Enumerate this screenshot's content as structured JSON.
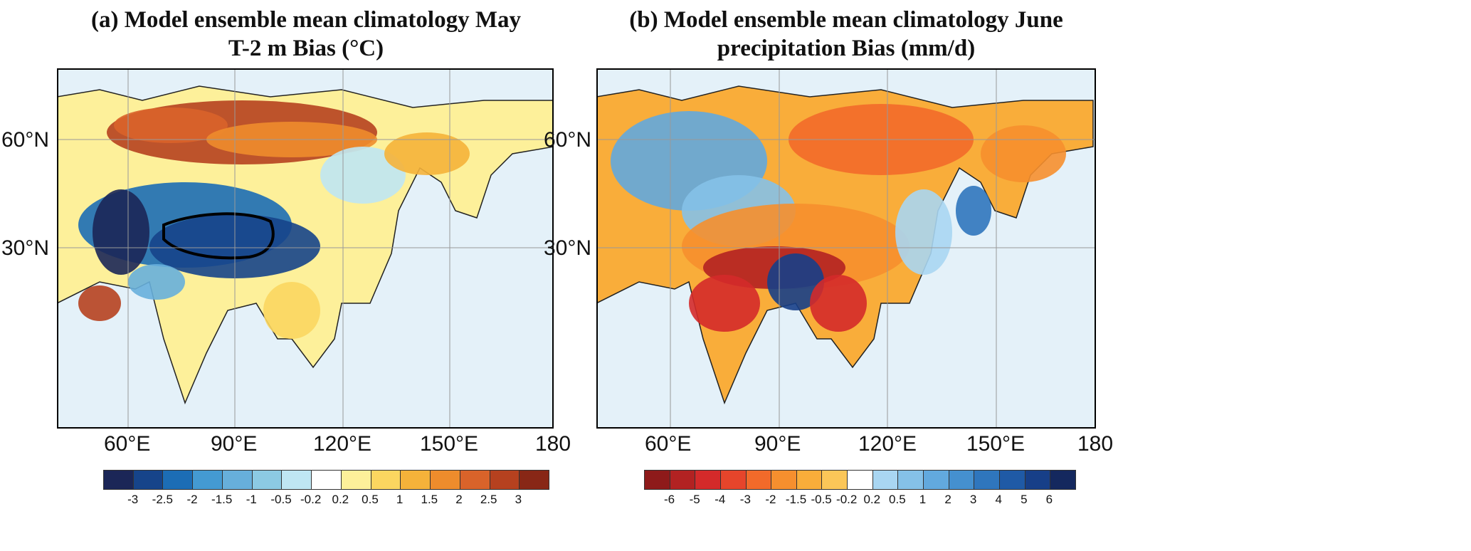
{
  "panels": [
    {
      "title_line1": "(a) Model ensemble mean climatology May",
      "title_line2": "T-2 m Bias (°C)",
      "lat_labels": [
        "60°N",
        "30°N"
      ],
      "lon_labels": [
        "60°E",
        "90°E",
        "120°E",
        "150°E",
        "180"
      ],
      "colorbar": {
        "labels": [
          "-3",
          "-2.5",
          "-2",
          "-1.5",
          "-1",
          "-0.5",
          "-0.2",
          "0.2",
          "0.5",
          "1",
          "1.5",
          "2",
          "2.5",
          "3"
        ],
        "colors": [
          "#1b2657",
          "#16448a",
          "#1c6db5",
          "#449ad2",
          "#67afdb",
          "#8ccae3",
          "#bfe6f3",
          "#ffffff",
          "#fdf09a",
          "#fbd660",
          "#f5b23a",
          "#ee8c2c",
          "#d9632a",
          "#b6411f",
          "#882716"
        ]
      }
    },
    {
      "title_line1": "(b) Model ensemble mean climatology June",
      "title_line2": "precipitation Bias (mm/d)",
      "lat_labels": [
        "60°N",
        "30°N"
      ],
      "lon_labels": [
        "60°E",
        "90°E",
        "120°E",
        "150°E",
        "180"
      ],
      "colorbar": {
        "labels": [
          "-6",
          "-5",
          "-4",
          "-3",
          "-2",
          "-1.5",
          "-0.5",
          "-0.2",
          "0.2",
          "0.5",
          "1",
          "2",
          "3",
          "4",
          "5",
          "6"
        ],
        "colors": [
          "#8e1a1a",
          "#b22222",
          "#d42a2a",
          "#e6452b",
          "#f26a2a",
          "#f68f2e",
          "#f9ad3a",
          "#fbc658",
          "#ffffff",
          "#a9d6f2",
          "#85c1e8",
          "#62a9de",
          "#4590cf",
          "#2f76bd",
          "#1f5aa6",
          "#173f88",
          "#14285e"
        ]
      }
    }
  ]
}
